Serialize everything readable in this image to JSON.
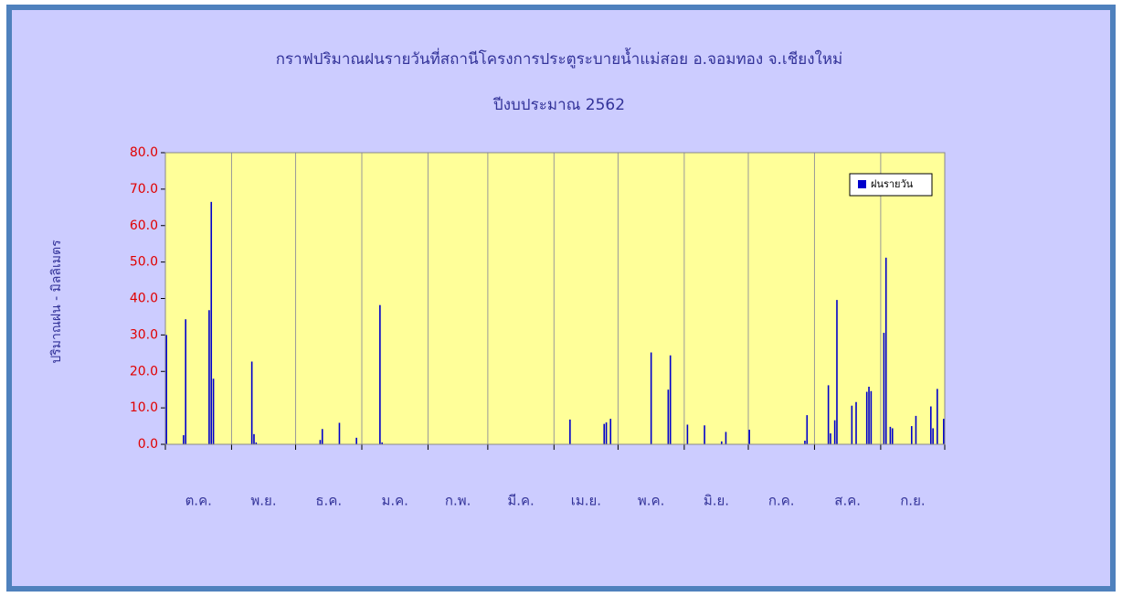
{
  "chart_data": {
    "type": "bar",
    "title": "กราฟปริมาณฝนรายวันที่สถานีโครงการประตูระบายน้ำแม่สอย อ.จอมทอง จ.เชียงใหม่",
    "subtitle": "ปีงบประมาณ 2562",
    "ylabel": "ปริมาณฝน - มิลลิเมตร",
    "categories": [
      "ต.ค.",
      "พ.ย.",
      "ธ.ค.",
      "ม.ค.",
      "ก.พ.",
      "มี.ค.",
      "เม.ย.",
      "พ.ค.",
      "มิ.ย.",
      "ก.ค.",
      "ส.ค.",
      "ก.ย."
    ],
    "series": [
      {
        "name": "ฝนรายวัน",
        "color": "#0000cc",
        "values": [
          [
            30.0,
            0,
            0,
            0,
            0,
            0,
            0,
            0,
            2.5,
            34.3,
            0,
            0,
            0,
            0,
            0,
            0,
            0,
            0,
            0,
            0,
            36.8,
            66.5,
            18.0,
            0,
            0,
            0,
            0,
            0,
            0,
            0,
            0
          ],
          [
            0,
            0,
            0,
            0,
            0,
            0,
            0,
            0,
            0,
            22.7,
            2.8,
            0.5,
            0,
            0,
            0,
            0,
            0,
            0,
            0,
            0,
            0,
            0,
            0,
            0,
            0,
            0,
            0,
            0,
            0,
            0
          ],
          [
            0,
            0,
            0,
            0,
            0,
            0,
            0,
            0,
            0,
            0,
            0,
            1.2,
            4.2,
            0,
            0,
            0,
            0,
            0,
            0,
            0,
            5.9,
            0,
            0,
            0,
            0,
            0,
            0,
            0,
            1.8,
            0,
            0
          ],
          [
            0,
            0,
            0,
            0,
            0,
            0,
            0,
            0,
            38.2,
            0.5,
            0,
            0,
            0,
            0,
            0,
            0,
            0,
            0,
            0,
            0,
            0,
            0,
            0,
            0,
            0,
            0,
            0,
            0,
            0,
            0,
            0
          ],
          [
            0,
            0,
            0,
            0,
            0,
            0,
            0,
            0,
            0,
            0,
            0,
            0,
            0,
            0,
            0,
            0,
            0,
            0,
            0,
            0,
            0,
            0,
            0,
            0,
            0,
            0,
            0,
            0
          ],
          [
            0,
            0,
            0,
            0,
            0,
            0,
            0,
            0,
            0,
            0,
            0,
            0,
            0,
            0,
            0,
            0,
            0,
            0,
            0,
            0,
            0,
            0,
            0,
            0,
            0,
            0,
            0,
            0,
            0,
            0,
            0
          ],
          [
            0,
            0,
            0,
            0,
            0,
            0,
            0,
            6.8,
            0,
            0,
            0,
            0,
            0,
            0,
            0,
            0,
            0,
            0,
            0,
            0,
            0,
            0,
            0,
            5.6,
            6.0,
            0,
            7.0,
            0,
            0,
            0
          ],
          [
            0,
            0,
            0,
            0,
            0,
            0,
            0,
            0,
            0,
            0,
            0,
            0,
            0,
            0,
            0,
            25.2,
            0,
            0,
            0,
            0,
            0,
            0,
            0,
            15.0,
            24.4,
            0,
            0,
            0,
            0,
            0,
            0
          ],
          [
            0,
            5.4,
            0,
            0,
            0,
            0,
            0,
            0,
            0,
            5.2,
            0,
            0,
            0,
            0,
            0,
            0,
            0,
            0.8,
            0,
            3.4,
            0,
            0,
            0,
            0,
            0,
            0,
            0,
            0,
            0,
            0
          ],
          [
            4.0,
            0,
            0,
            0,
            0,
            0,
            0,
            0,
            0,
            0,
            0,
            0,
            0,
            0,
            0,
            0,
            0,
            0,
            0,
            0,
            0,
            0,
            0,
            0,
            0,
            0,
            1.0,
            8.0,
            0,
            0,
            0
          ],
          [
            0,
            0,
            0,
            0,
            0,
            0,
            16.2,
            3.0,
            0,
            6.6,
            39.6,
            0,
            0,
            0,
            0,
            0,
            0,
            10.6,
            0,
            11.6,
            0,
            0,
            0,
            0,
            14.4,
            15.8,
            14.6,
            0,
            0,
            0,
            0
          ],
          [
            0,
            30.6,
            51.2,
            0,
            4.8,
            4.4,
            0,
            0,
            0,
            0,
            0,
            0,
            0,
            0,
            5.0,
            0,
            7.8,
            0,
            0,
            0,
            0,
            0,
            0,
            10.4,
            4.4,
            0,
            15.2,
            0,
            0,
            7.0
          ]
        ]
      }
    ],
    "ylim": [
      0,
      80
    ],
    "yticks": [
      {
        "value": 0,
        "label": "0.0"
      },
      {
        "value": 10,
        "label": "10.0"
      },
      {
        "value": 20,
        "label": "20.0"
      },
      {
        "value": 30,
        "label": "30.0"
      },
      {
        "value": 40,
        "label": "40.0"
      },
      {
        "value": 50,
        "label": "50.0"
      },
      {
        "value": 60,
        "label": "60.0"
      },
      {
        "value": 70,
        "label": "70.0"
      },
      {
        "value": 80,
        "label": "80.0"
      }
    ],
    "legend": "top-right"
  }
}
